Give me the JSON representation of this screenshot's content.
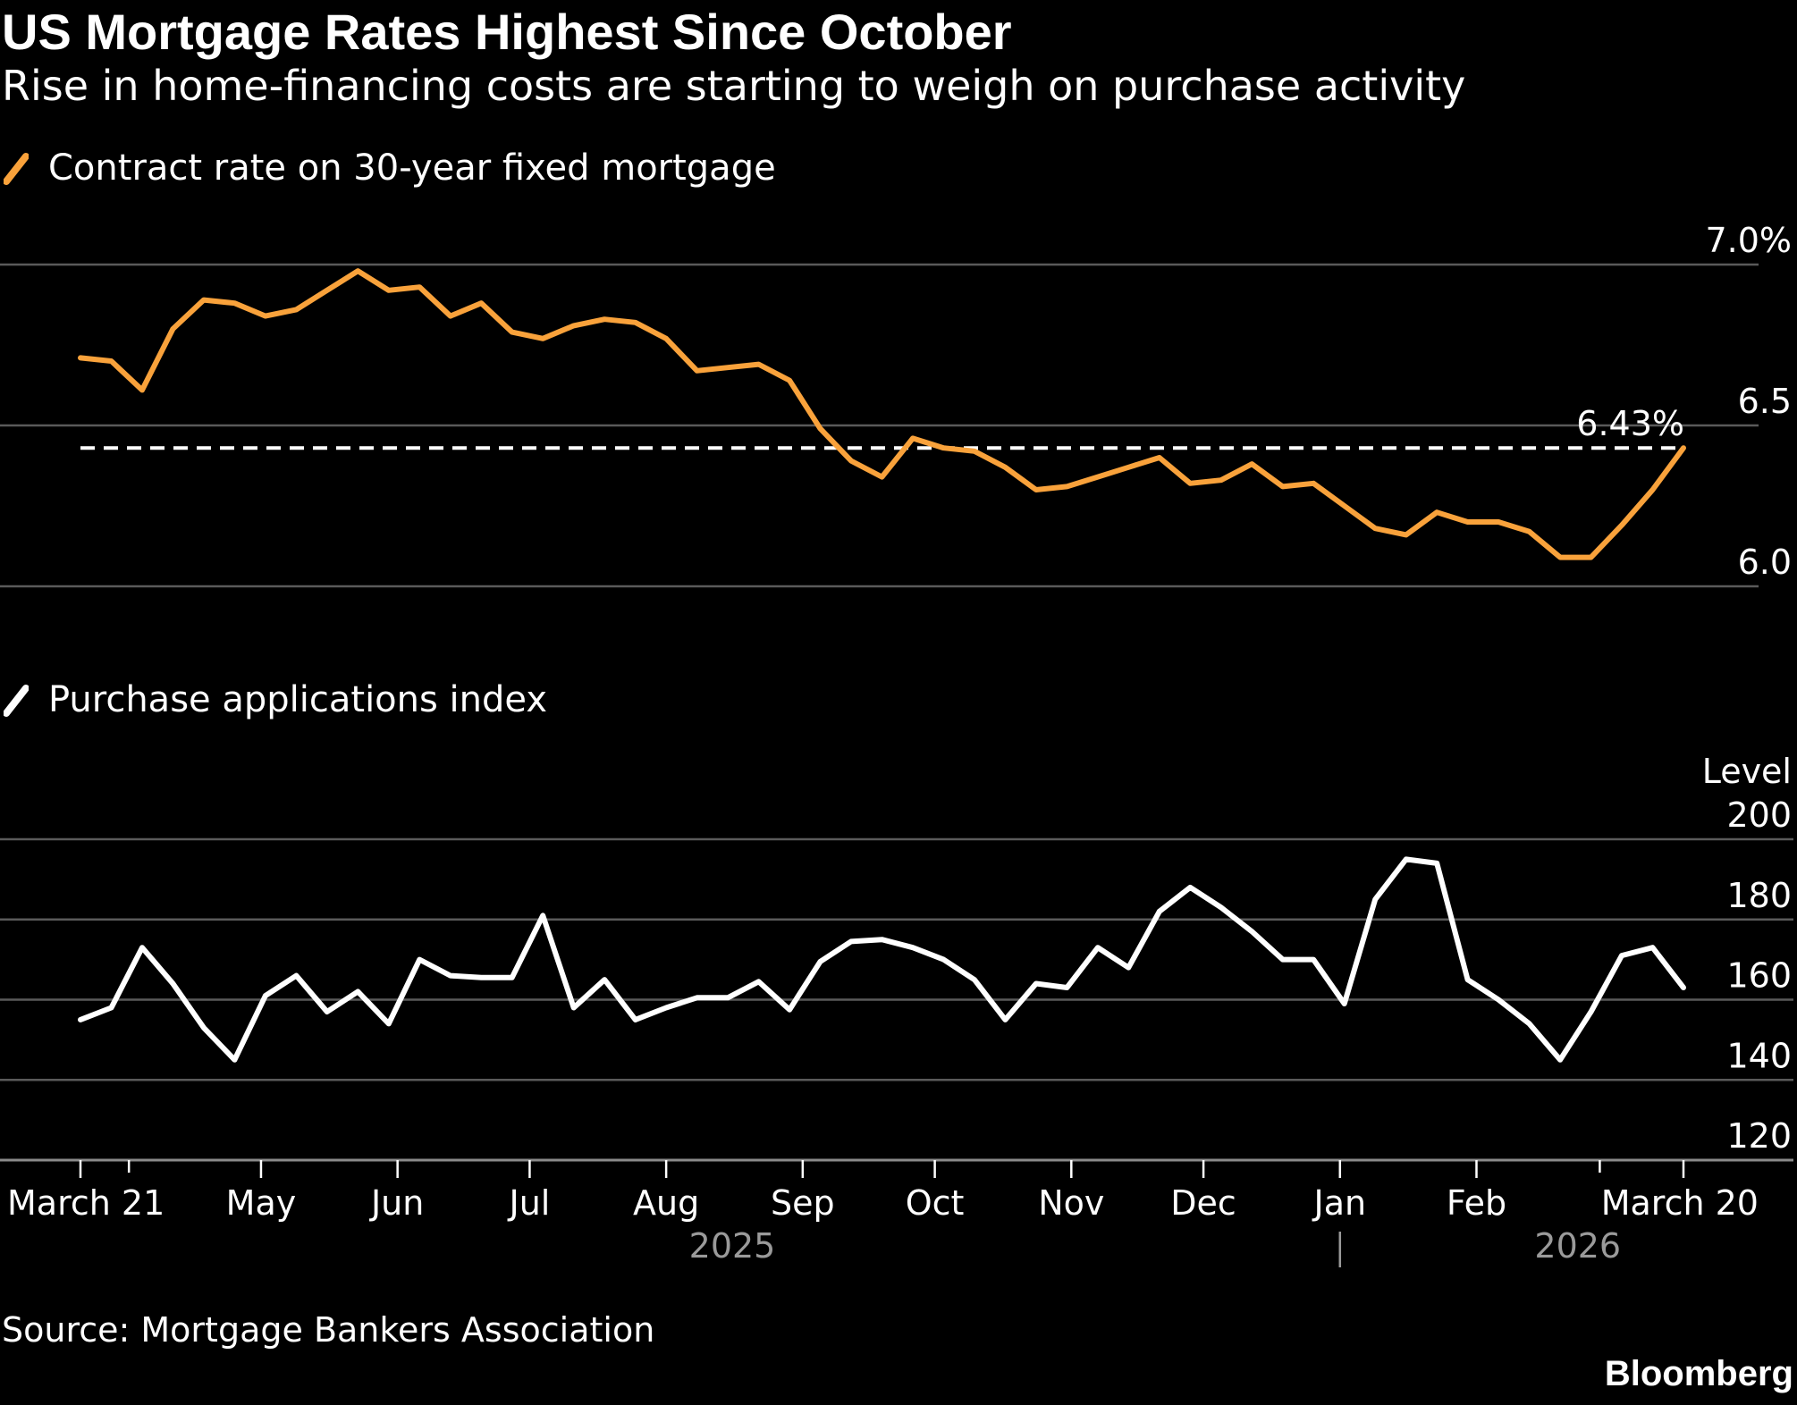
{
  "title": "US Mortgage Rates Highest Since October",
  "subtitle": "Rise in home-financing costs are starting to weigh on purchase activity",
  "source": "Source: Mortgage Bankers Association",
  "brand": "Bloomberg",
  "colors": {
    "background": "#000000",
    "rate_line": "#f9a23b",
    "purchase_line": "#ffffff",
    "gridline": "#5a5a5a",
    "year_label": "#9a9a9a"
  },
  "chart_data": [
    {
      "type": "line",
      "title": "",
      "legend": "Contract rate on 30-year fixed mortgage",
      "ylabel": "",
      "ylim": [
        6.0,
        7.0
      ],
      "y_ticks": [
        {
          "value": 6.0,
          "label": "6.0"
        },
        {
          "value": 6.5,
          "label": "6.5"
        },
        {
          "value": 7.0,
          "label": "7.0%"
        }
      ],
      "grid": true,
      "reference_line": {
        "value": 6.43,
        "label": "6.43%",
        "style": "dashed"
      },
      "series": [
        {
          "name": "Contract rate on 30-year fixed mortgage",
          "x": [
            "2025-03-21",
            "2025-03-28",
            "2025-04-04",
            "2025-04-11",
            "2025-04-18",
            "2025-04-25",
            "2025-05-02",
            "2025-05-09",
            "2025-05-16",
            "2025-05-23",
            "2025-05-30",
            "2025-06-06",
            "2025-06-13",
            "2025-06-20",
            "2025-06-27",
            "2025-07-04",
            "2025-07-11",
            "2025-07-18",
            "2025-07-25",
            "2025-08-01",
            "2025-08-08",
            "2025-08-15",
            "2025-08-22",
            "2025-08-29",
            "2025-09-05",
            "2025-09-12",
            "2025-09-19",
            "2025-09-26",
            "2025-10-03",
            "2025-10-10",
            "2025-10-17",
            "2025-10-24",
            "2025-10-31",
            "2025-11-07",
            "2025-11-14",
            "2025-11-21",
            "2025-11-28",
            "2025-12-05",
            "2025-12-12",
            "2025-12-19",
            "2025-12-26",
            "2026-01-02",
            "2026-01-09",
            "2026-01-16",
            "2026-01-23",
            "2026-01-30",
            "2026-02-06",
            "2026-02-13",
            "2026-02-20",
            "2026-02-27",
            "2026-03-06",
            "2026-03-13",
            "2026-03-20"
          ],
          "values": [
            6.71,
            6.7,
            6.61,
            6.8,
            6.89,
            6.88,
            6.84,
            6.86,
            6.92,
            6.98,
            6.92,
            6.93,
            6.84,
            6.88,
            6.79,
            6.77,
            6.81,
            6.83,
            6.82,
            6.77,
            6.67,
            6.68,
            6.69,
            6.64,
            6.49,
            6.39,
            6.34,
            6.46,
            6.43,
            6.42,
            6.37,
            6.3,
            6.31,
            6.34,
            6.37,
            6.4,
            6.32,
            6.33,
            6.38,
            6.31,
            6.32,
            6.25,
            6.18,
            6.16,
            6.23,
            6.2,
            6.2,
            6.17,
            6.09,
            6.09,
            6.19,
            6.3,
            6.43
          ]
        }
      ]
    },
    {
      "type": "line",
      "title": "",
      "legend": "Purchase applications index",
      "ylabel": "Level",
      "ylim": [
        120,
        200
      ],
      "y_ticks": [
        {
          "value": 120,
          "label": "120"
        },
        {
          "value": 140,
          "label": "140"
        },
        {
          "value": 160,
          "label": "160"
        },
        {
          "value": 180,
          "label": "180"
        },
        {
          "value": 200,
          "label": "200"
        }
      ],
      "grid": true,
      "series": [
        {
          "name": "Purchase applications index",
          "x": [
            "2025-03-21",
            "2025-03-28",
            "2025-04-04",
            "2025-04-11",
            "2025-04-18",
            "2025-04-25",
            "2025-05-02",
            "2025-05-09",
            "2025-05-16",
            "2025-05-23",
            "2025-05-30",
            "2025-06-06",
            "2025-06-13",
            "2025-06-20",
            "2025-06-27",
            "2025-07-04",
            "2025-07-11",
            "2025-07-18",
            "2025-07-25",
            "2025-08-01",
            "2025-08-08",
            "2025-08-15",
            "2025-08-22",
            "2025-08-29",
            "2025-09-05",
            "2025-09-12",
            "2025-09-19",
            "2025-09-26",
            "2025-10-03",
            "2025-10-10",
            "2025-10-17",
            "2025-10-24",
            "2025-10-31",
            "2025-11-07",
            "2025-11-14",
            "2025-11-21",
            "2025-11-28",
            "2025-12-05",
            "2025-12-12",
            "2025-12-19",
            "2025-12-26",
            "2026-01-02",
            "2026-01-09",
            "2026-01-16",
            "2026-01-23",
            "2026-01-30",
            "2026-02-06",
            "2026-02-13",
            "2026-02-20",
            "2026-02-27",
            "2026-03-06",
            "2026-03-13",
            "2026-03-20"
          ],
          "values": [
            155,
            158,
            173,
            164,
            153,
            145,
            161,
            166,
            157,
            162,
            154,
            170,
            166,
            165.5,
            165.5,
            181,
            158,
            165,
            155,
            158,
            160.5,
            160.5,
            164.5,
            157.5,
            169.5,
            174.5,
            175,
            173,
            170,
            165,
            155,
            164,
            163,
            173,
            168,
            182,
            188,
            183,
            177,
            170,
            170,
            159,
            185,
            195,
            194,
            165,
            160,
            154,
            145,
            157,
            171,
            173,
            163
          ]
        }
      ]
    }
  ],
  "x_axis": {
    "ticks": [
      {
        "date": "2025-03-21",
        "label": "March 21"
      },
      {
        "date": "2025-05-01",
        "label": "May"
      },
      {
        "date": "2025-06-01",
        "label": "Jun"
      },
      {
        "date": "2025-07-01",
        "label": "Jul"
      },
      {
        "date": "2025-08-01",
        "label": "Aug"
      },
      {
        "date": "2025-09-01",
        "label": "Sep"
      },
      {
        "date": "2025-10-01",
        "label": "Oct"
      },
      {
        "date": "2025-11-01",
        "label": "Nov"
      },
      {
        "date": "2025-12-01",
        "label": "Dec"
      },
      {
        "date": "2026-01-01",
        "label": "Jan"
      },
      {
        "date": "2026-02-01",
        "label": "Feb"
      },
      {
        "date": "2026-03-20",
        "label": "March 20"
      }
    ],
    "minor_ticks": [
      "2025-04-01",
      "2026-03-01"
    ],
    "years": [
      {
        "label": "2025",
        "center_date": "2025-08-16"
      },
      {
        "label": "2026",
        "center_date": "2026-02-24"
      }
    ],
    "year_divider": "2026-01-01"
  }
}
